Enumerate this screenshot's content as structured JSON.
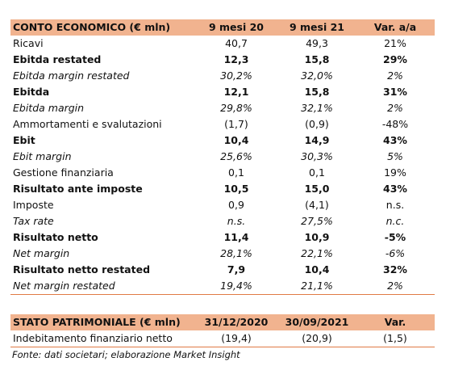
{
  "income": {
    "header": [
      "CONTO ECONOMICO (€ mln)",
      "9 mesi 20",
      "9 mesi 21",
      "Var. a/a"
    ],
    "rows": [
      {
        "label": "Ricavi",
        "v1": "40,7",
        "v2": "49,3",
        "v3": "21%",
        "style": "normal"
      },
      {
        "label": "Ebitda restated",
        "v1": "12,3",
        "v2": "15,8",
        "v3": "29%",
        "style": "bold"
      },
      {
        "label": "Ebitda margin restated",
        "v1": "30,2%",
        "v2": "32,0%",
        "v3": "2%",
        "style": "ital"
      },
      {
        "label": "Ebitda",
        "v1": "12,1",
        "v2": "15,8",
        "v3": "31%",
        "style": "bold"
      },
      {
        "label": "Ebitda margin",
        "v1": "29,8%",
        "v2": "32,1%",
        "v3": "2%",
        "style": "ital"
      },
      {
        "label": "Ammortamenti e svalutazioni",
        "v1": "(1,7)",
        "v2": "(0,9)",
        "v3": "-48%",
        "style": "normal"
      },
      {
        "label": "Ebit",
        "v1": "10,4",
        "v2": "14,9",
        "v3": "43%",
        "style": "bold"
      },
      {
        "label": "Ebit margin",
        "v1": "25,6%",
        "v2": "30,3%",
        "v3": "5%",
        "style": "ital"
      },
      {
        "label": "Gestione finanziaria",
        "v1": "0,1",
        "v2": "0,1",
        "v3": "19%",
        "style": "normal"
      },
      {
        "label": "Risultato ante imposte",
        "v1": "10,5",
        "v2": "15,0",
        "v3": "43%",
        "style": "bold"
      },
      {
        "label": "Imposte",
        "v1": "0,9",
        "v2": "(4,1)",
        "v3": "n.s.",
        "style": "normal"
      },
      {
        "label": "Tax rate",
        "v1": "n.s.",
        "v2": "27,5%",
        "v3": "n.c.",
        "style": "ital"
      },
      {
        "label": "Risultato netto",
        "v1": "11,4",
        "v2": "10,9",
        "v3": "-5%",
        "style": "bold"
      },
      {
        "label": "Net margin",
        "v1": "28,1%",
        "v2": "22,1%",
        "v3": "-6%",
        "style": "ital"
      },
      {
        "label": "Risultato netto restated",
        "v1": "7,9",
        "v2": "10,4",
        "v3": "32%",
        "style": "bold"
      },
      {
        "label": "Net margin restated",
        "v1": "19,4%",
        "v2": "21,1%",
        "v3": "2%",
        "style": "ital"
      }
    ]
  },
  "balance": {
    "header": [
      "STATO PATRIMONIALE (€ mln)",
      "31/12/2020",
      "30/09/2021",
      "Var."
    ],
    "rows": [
      {
        "label": "Indebitamento finanziario netto",
        "v1": "(19,4)",
        "v2": "(20,9)",
        "v3": "(1,5)",
        "style": "normal"
      }
    ]
  },
  "footnote": "Fonte: dati societari; elaborazione Market Insight"
}
